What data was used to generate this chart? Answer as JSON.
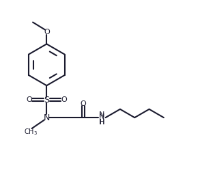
{
  "bg_color": "#ffffff",
  "line_color": "#1a1a2e",
  "line_width": 1.5,
  "font_size": 8,
  "fig_width": 2.93,
  "fig_height": 2.62,
  "dpi": 100,
  "xlim": [
    0,
    10
  ],
  "ylim": [
    0,
    9
  ]
}
